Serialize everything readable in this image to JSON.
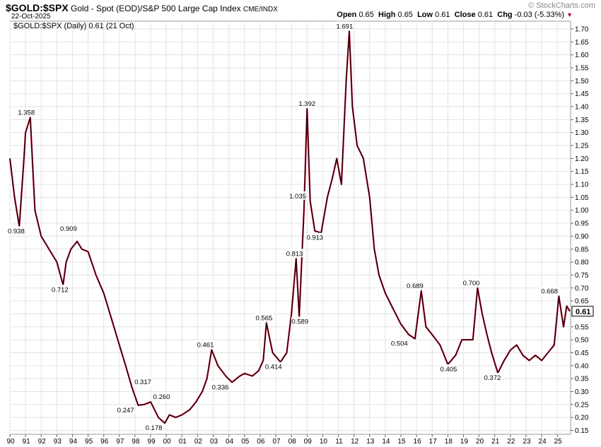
{
  "header": {
    "symbol": "$GOLD:$SPX",
    "description": "Gold - Spot (EOD)/S&P 500 Large Cap Index",
    "exchange": "CME/INDX",
    "date": "22-Oct-2025",
    "open_label": "Open",
    "open": "0.65",
    "high_label": "High",
    "high": "0.65",
    "low_label": "Low",
    "low": "0.61",
    "close_label": "Close",
    "close": "0.61",
    "chg_label": "Chg",
    "chg": "-0.03 (-5.33%)"
  },
  "logo": "© StockCharts.com",
  "legend": "$GOLD:$SPX (Daily) 0.61 (21 Oct)",
  "colors": {
    "up": "#000000",
    "down": "#c0002a",
    "grid": "#e3e3e3",
    "badge_bg": "#ffffff"
  },
  "chart_data": {
    "type": "line",
    "title": "$GOLD:$SPX (Daily) 0.61 (21 Oct)",
    "xlabel": "",
    "ylabel": "",
    "x_tick_labels": [
      "90",
      "91",
      "92",
      "93",
      "94",
      "95",
      "96",
      "97",
      "98",
      "99",
      "00",
      "01",
      "02",
      "03",
      "04",
      "05",
      "06",
      "07",
      "08",
      "09",
      "10",
      "11",
      "12",
      "13",
      "14",
      "15",
      "16",
      "17",
      "18",
      "19",
      "20",
      "21",
      "22",
      "23",
      "24",
      "25"
    ],
    "y_ticks": [
      0.15,
      0.2,
      0.25,
      0.3,
      0.35,
      0.4,
      0.45,
      0.5,
      0.55,
      0.6,
      0.65,
      0.7,
      0.75,
      0.8,
      0.85,
      0.9,
      0.95,
      1.0,
      1.05,
      1.1,
      1.15,
      1.2,
      1.25,
      1.3,
      1.35,
      1.4,
      1.45,
      1.5,
      1.55,
      1.6,
      1.65,
      1.7
    ],
    "y_tick_labels": [
      "0.15",
      "0.20",
      "0.25",
      "0.30",
      "0.35",
      "0.40",
      "0.45",
      "0.50",
      "0.55",
      "0.60",
      "0.65",
      "0.70",
      "0.75",
      "0.80",
      "0.85",
      "0.90",
      "0.95",
      "1.00",
      "1.05",
      "1.10",
      "1.15",
      "1.20",
      "1.25",
      "1.30",
      "1.35",
      "1.40",
      "1.45",
      "1.50",
      "1.55",
      "1.60",
      "1.65",
      "1.70"
    ],
    "xlim": [
      1990.0,
      2025.85
    ],
    "ylim": [
      0.135,
      1.73
    ],
    "grid": true,
    "last_value": "0.61",
    "series": [
      {
        "x": [
          1990.0,
          1990.3,
          1990.6,
          1990.9,
          1991.0,
          1991.3,
          1991.6,
          1992.0,
          1992.5,
          1993.0,
          1993.4,
          1993.6,
          1993.9,
          1994.3,
          1994.6,
          1995.0,
          1995.5,
          1996.0,
          1996.5,
          1997.0,
          1997.4,
          1997.8,
          1998.2,
          1998.6,
          1999.0,
          1999.5,
          1999.9,
          2000.2,
          2000.6,
          2001.0,
          2001.5,
          2001.9,
          2002.3,
          2002.6,
          2002.9,
          2003.3,
          2003.8,
          2004.2,
          2004.7,
          2005.0,
          2005.5,
          2005.9,
          2006.2,
          2006.4,
          2006.8,
          2007.3,
          2007.7,
          2008.0,
          2008.3,
          2008.5,
          2008.8,
          2009.0,
          2009.2,
          2009.5,
          2009.9,
          2010.3,
          2010.6,
          2010.9,
          2011.2,
          2011.5,
          2011.7,
          2011.9,
          2012.2,
          2012.6,
          2013.0,
          2013.3,
          2013.6,
          2014.0,
          2014.5,
          2015.0,
          2015.5,
          2015.9,
          2016.3,
          2016.6,
          2017.0,
          2017.5,
          2018.0,
          2018.5,
          2018.9,
          2019.3,
          2019.6,
          2019.9,
          2020.2,
          2020.5,
          2020.8,
          2021.2,
          2021.6,
          2022.0,
          2022.4,
          2022.8,
          2023.2,
          2023.6,
          2024.0,
          2024.4,
          2024.8,
          2025.1,
          2025.4,
          2025.6,
          2025.8
        ],
        "values": [
          1.2,
          1.05,
          0.938,
          1.2,
          1.3,
          1.358,
          1.0,
          0.9,
          0.85,
          0.8,
          0.712,
          0.8,
          0.85,
          0.88,
          0.85,
          0.84,
          0.75,
          0.68,
          0.58,
          0.48,
          0.4,
          0.317,
          0.247,
          0.25,
          0.26,
          0.2,
          0.178,
          0.21,
          0.2,
          0.21,
          0.23,
          0.26,
          0.3,
          0.35,
          0.461,
          0.4,
          0.36,
          0.336,
          0.36,
          0.37,
          0.36,
          0.38,
          0.42,
          0.565,
          0.45,
          0.414,
          0.45,
          0.6,
          0.813,
          0.589,
          1.0,
          1.392,
          1.035,
          0.92,
          0.913,
          1.05,
          1.12,
          1.2,
          1.1,
          1.5,
          1.691,
          1.4,
          1.25,
          1.2,
          1.05,
          0.85,
          0.75,
          0.68,
          0.62,
          0.56,
          0.52,
          0.504,
          0.689,
          0.55,
          0.52,
          0.48,
          0.405,
          0.44,
          0.5,
          0.5,
          0.5,
          0.7,
          0.6,
          0.52,
          0.45,
          0.372,
          0.42,
          0.46,
          0.48,
          0.44,
          0.42,
          0.44,
          0.42,
          0.45,
          0.48,
          0.668,
          0.55,
          0.63,
          0.61
        ]
      }
    ],
    "annotations": [
      {
        "x": 1990.4,
        "y": 0.938,
        "label": "0.938"
      },
      {
        "x": 1991.05,
        "y": 1.358,
        "label": "1.358"
      },
      {
        "x": 1993.2,
        "y": 0.712,
        "label": "0.712"
      },
      {
        "x": 1993.75,
        "y": 0.909,
        "label": "0.909"
      },
      {
        "x": 1997.4,
        "y": 0.247,
        "label": "0.247"
      },
      {
        "x": 1998.5,
        "y": 0.317,
        "label": "0.317"
      },
      {
        "x": 1999.7,
        "y": 0.26,
        "label": "0.260"
      },
      {
        "x": 1999.2,
        "y": 0.178,
        "label": "0.178"
      },
      {
        "x": 2002.5,
        "y": 0.461,
        "label": "0.461"
      },
      {
        "x": 2003.45,
        "y": 0.336,
        "label": "0.336"
      },
      {
        "x": 2006.25,
        "y": 0.565,
        "label": "0.565"
      },
      {
        "x": 2006.85,
        "y": 0.414,
        "label": "0.414"
      },
      {
        "x": 2008.2,
        "y": 0.813,
        "label": "0.813"
      },
      {
        "x": 2008.55,
        "y": 0.589,
        "label": "0.589"
      },
      {
        "x": 2008.4,
        "y": 1.035,
        "label": "1.035"
      },
      {
        "x": 2009.0,
        "y": 1.392,
        "label": "1.392"
      },
      {
        "x": 2009.5,
        "y": 0.913,
        "label": "0.913"
      },
      {
        "x": 2011.4,
        "y": 1.691,
        "label": "1.691"
      },
      {
        "x": 2014.9,
        "y": 0.504,
        "label": "0.504"
      },
      {
        "x": 2015.9,
        "y": 0.689,
        "label": "0.689"
      },
      {
        "x": 2018.05,
        "y": 0.405,
        "label": "0.405"
      },
      {
        "x": 2019.5,
        "y": 0.7,
        "label": "0.700"
      },
      {
        "x": 2020.85,
        "y": 0.372,
        "label": "0.372"
      },
      {
        "x": 2024.5,
        "y": 0.668,
        "label": "0.668"
      }
    ]
  }
}
